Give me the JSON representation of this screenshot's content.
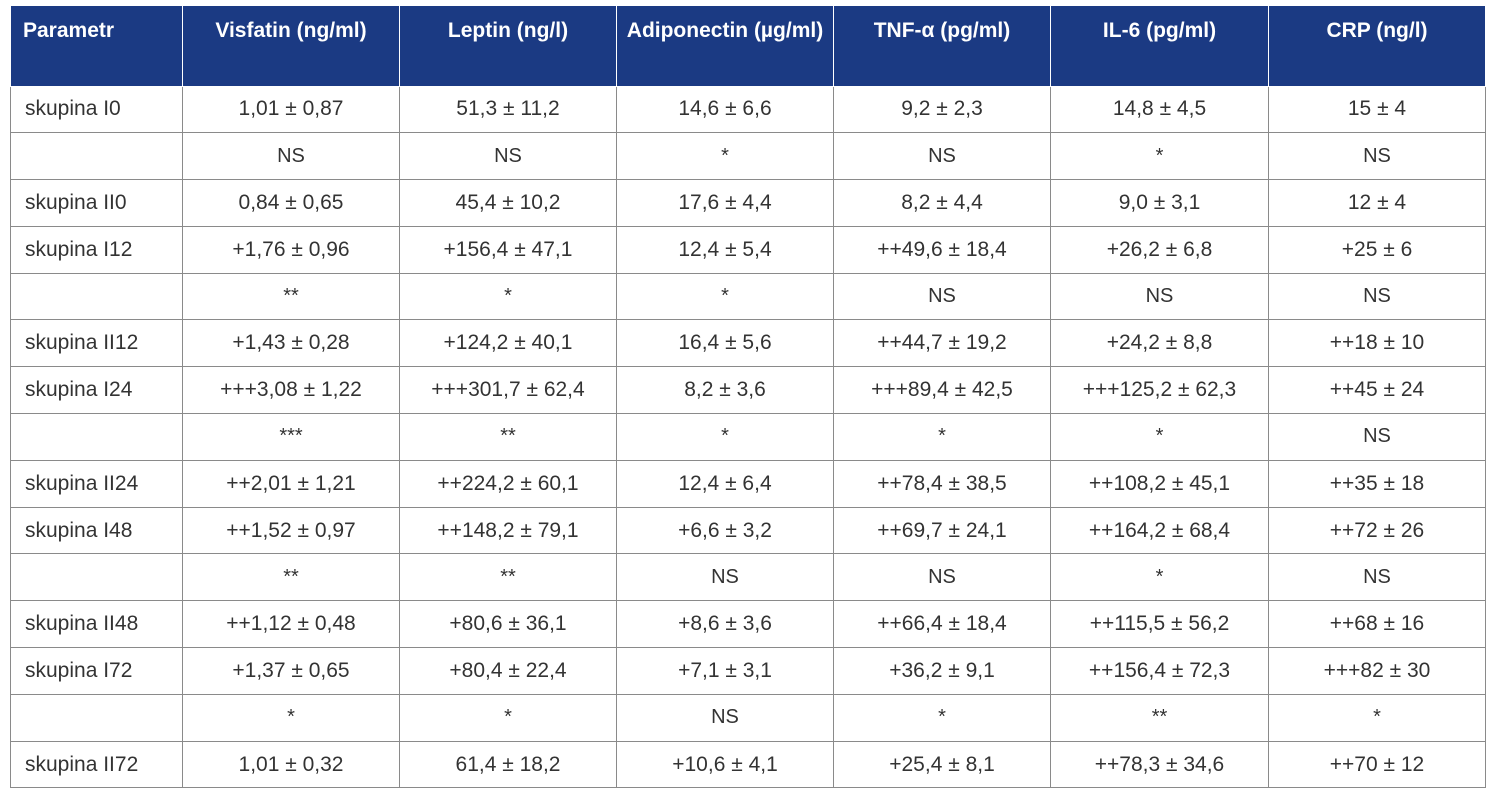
{
  "table": {
    "headers": [
      "Parametr",
      "Visfatin (ng/ml)",
      "Leptin (ng/l)",
      "Adiponectin (µg/ml)",
      "TNF-α (pg/ml)",
      "IL-6 (pg/ml)",
      "CRP (ng/l)"
    ],
    "rows": [
      [
        "skupina I0",
        "1,01 ± 0,87",
        "51,3 ± 11,2",
        "14,6 ± 6,6",
        "9,2 ± 2,3",
        "14,8 ± 4,5",
        "15 ± 4"
      ],
      [
        "",
        "NS",
        "NS",
        "*",
        "NS",
        "*",
        "NS"
      ],
      [
        "skupina II0",
        "0,84 ± 0,65",
        "45,4 ± 10,2",
        "17,6 ± 4,4",
        "8,2 ± 4,4",
        "9,0 ± 3,1",
        "12 ± 4"
      ],
      [
        "skupina I12",
        "+1,76 ± 0,96",
        "+156,4 ± 47,1",
        "12,4 ± 5,4",
        "++49,6 ± 18,4",
        "+26,2 ± 6,8",
        "+25 ± 6"
      ],
      [
        "",
        "**",
        "*",
        "*",
        "NS",
        "NS",
        "NS"
      ],
      [
        "skupina II12",
        "+1,43 ± 0,28",
        "+124,2 ± 40,1",
        "16,4 ± 5,6",
        "++44,7 ± 19,2",
        "+24,2 ± 8,8",
        "++18 ± 10"
      ],
      [
        "skupina I24",
        "+++3,08 ± 1,22",
        "+++301,7 ± 62,4",
        "8,2 ± 3,6",
        "+++89,4 ± 42,5",
        "+++125,2 ± 62,3",
        "++45 ± 24"
      ],
      [
        "",
        "***",
        "**",
        "*",
        "*",
        "*",
        "NS"
      ],
      [
        "skupina II24",
        "++2,01 ± 1,21",
        "++224,2 ± 60,1",
        "12,4 ± 6,4",
        "++78,4 ± 38,5",
        "++108,2 ± 45,1",
        "++35 ± 18"
      ],
      [
        "skupina I48",
        "++1,52 ± 0,97",
        "++148,2 ± 79,1",
        "+6,6 ± 3,2",
        "++69,7 ± 24,1",
        "++164,2 ± 68,4",
        "++72 ± 26"
      ],
      [
        "",
        "**",
        "**",
        "NS",
        "NS",
        "*",
        "NS"
      ],
      [
        "skupina II48",
        "++1,12 ± 0,48",
        "+80,6 ± 36,1",
        "+8,6 ± 3,6",
        "++66,4 ± 18,4",
        "++115,5 ± 56,2",
        "++68 ± 16"
      ],
      [
        "skupina I72",
        "+1,37 ± 0,65",
        "+80,4 ± 22,4",
        "+7,1 ± 3,1",
        "+36,2 ± 9,1",
        "++156,4 ± 72,3",
        "+++82 ± 30"
      ],
      [
        "",
        "*",
        "*",
        "NS",
        "*",
        "**",
        "*"
      ],
      [
        "skupina II72",
        "1,01 ± 0,32",
        "61,4 ± 18,2",
        "+10,6 ± 4,1",
        "+25,4 ± 8,1",
        "++78,3 ± 34,6",
        "++70 ± 12"
      ]
    ]
  },
  "colors": {
    "header_bg": "#1b3a83",
    "header_text": "#ffffff",
    "cell_text": "#333333",
    "grid_line": "#8a8a8a"
  }
}
